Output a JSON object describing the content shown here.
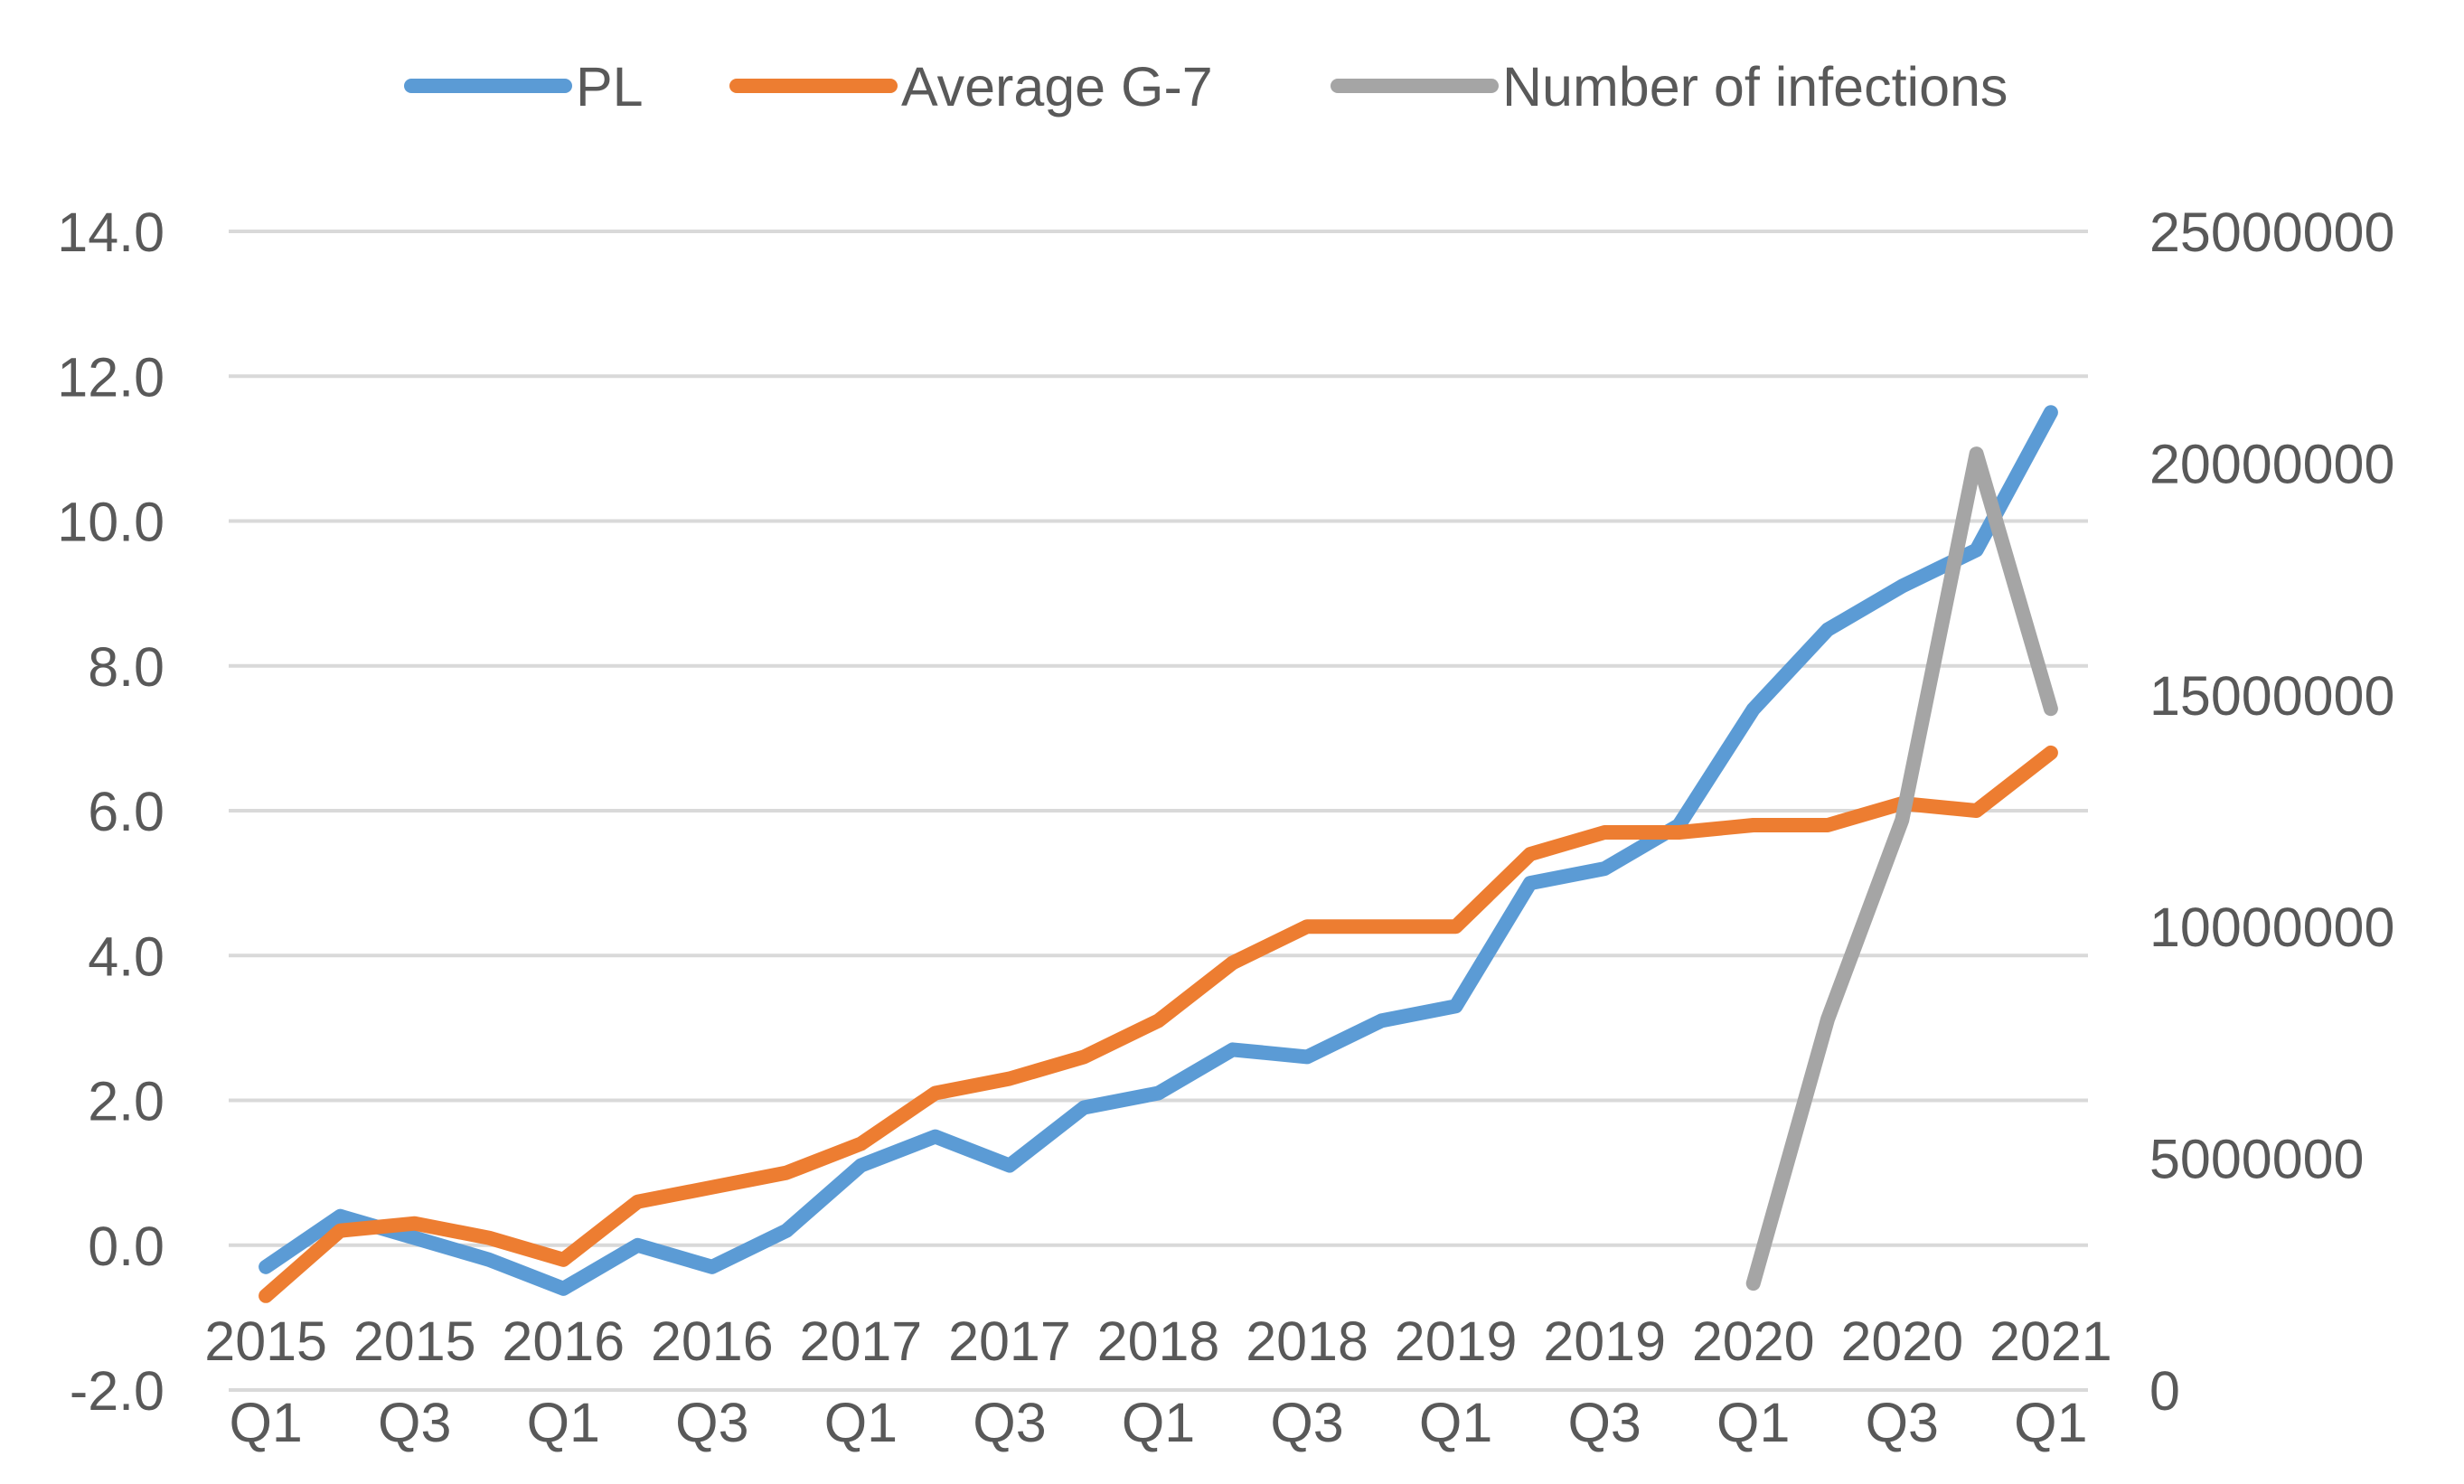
{
  "chart_data": {
    "type": "line",
    "title": "",
    "xlabel": "",
    "ylabel": "",
    "y2label": "",
    "ylim": [
      -2.0,
      14.0
    ],
    "y2lim": [
      0,
      25000000
    ],
    "yticks": [
      "-2.0",
      "0.0",
      "2.0",
      "4.0",
      "6.0",
      "8.0",
      "10.0",
      "12.0",
      "14.0"
    ],
    "y2ticks": [
      "0",
      "5000000",
      "10000000",
      "15000000",
      "20000000",
      "25000000"
    ],
    "categories": [
      "2015 Q1",
      "2015 Q2",
      "2015 Q3",
      "2015 Q4",
      "2016 Q1",
      "2016 Q2",
      "2016 Q3",
      "2016 Q4",
      "2017 Q1",
      "2017 Q2",
      "2017 Q3",
      "2017 Q4",
      "2018 Q1",
      "2018 Q2",
      "2018 Q3",
      "2018 Q4",
      "2019 Q1",
      "2019 Q2",
      "2019 Q3",
      "2019 Q4",
      "2020 Q1",
      "2020 Q2",
      "2020 Q3",
      "2020 Q4",
      "2021 Q1"
    ],
    "x_tick_labels": [
      {
        "year": "2015",
        "quarter": "Q1"
      },
      {
        "year": "2015",
        "quarter": "Q3"
      },
      {
        "year": "2016",
        "quarter": "Q1"
      },
      {
        "year": "2016",
        "quarter": "Q3"
      },
      {
        "year": "2017",
        "quarter": "Q1"
      },
      {
        "year": "2017",
        "quarter": "Q3"
      },
      {
        "year": "2018",
        "quarter": "Q1"
      },
      {
        "year": "2018",
        "quarter": "Q3"
      },
      {
        "year": "2019",
        "quarter": "Q1"
      },
      {
        "year": "2019",
        "quarter": "Q3"
      },
      {
        "year": "2020",
        "quarter": "Q1"
      },
      {
        "year": "2020",
        "quarter": "Q3"
      },
      {
        "year": "2021",
        "quarter": "Q1"
      }
    ],
    "series": [
      {
        "name": "PL",
        "color": "#5B9BD5",
        "axis": "left",
        "values": [
          -0.3,
          0.4,
          0.1,
          -0.2,
          -0.6,
          0.0,
          -0.3,
          0.2,
          1.1,
          1.5,
          1.1,
          1.9,
          2.1,
          2.7,
          2.6,
          3.1,
          3.3,
          5.0,
          5.2,
          5.8,
          7.4,
          8.5,
          9.1,
          9.6,
          11.5
        ]
      },
      {
        "name": "Average G-7",
        "color": "#ED7D31",
        "axis": "left",
        "values": [
          -0.7,
          0.2,
          0.3,
          0.1,
          -0.2,
          0.6,
          0.8,
          1.0,
          1.4,
          2.1,
          2.3,
          2.6,
          3.1,
          3.9,
          4.4,
          4.4,
          4.4,
          5.4,
          5.7,
          5.7,
          5.8,
          5.8,
          6.1,
          6.0,
          6.8
        ]
      },
      {
        "name": "Number of infections",
        "color": "#A5A5A5",
        "axis": "right",
        "values": [
          null,
          null,
          null,
          null,
          null,
          null,
          null,
          null,
          null,
          null,
          null,
          null,
          null,
          null,
          null,
          null,
          null,
          null,
          null,
          null,
          2300000,
          8000000,
          12300000,
          20200000,
          14700000
        ]
      }
    ],
    "legend_position": "top-center",
    "grid": true
  }
}
